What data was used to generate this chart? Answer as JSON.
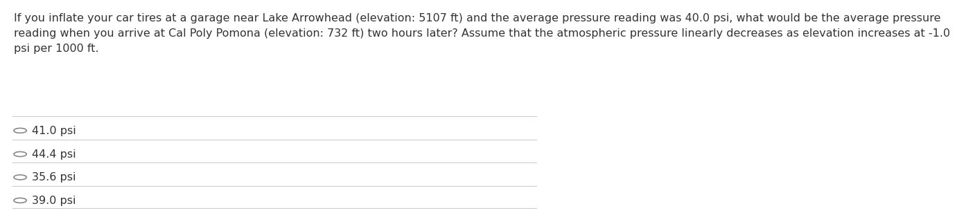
{
  "question_text": "If you inflate your car tires at a garage near Lake Arrowhead (elevation: 5107 ft) and the average pressure reading was 40.0 psi, what would be the average pressure\nreading when you arrive at Cal Poly Pomona (elevation: 732 ft) two hours later? Assume that the atmospheric pressure linearly decreases as elevation increases at -1.0\npsi per 1000 ft.",
  "options": [
    "41.0 psi",
    "44.4 psi",
    "35.6 psi",
    "39.0 psi"
  ],
  "bg_color": "#ffffff",
  "text_color": "#333333",
  "option_text_color": "#333333",
  "line_color": "#cccccc",
  "circle_color": "#888888",
  "question_fontsize": 11.5,
  "option_fontsize": 11.5,
  "fig_width": 12.0,
  "fig_height": 2.94
}
